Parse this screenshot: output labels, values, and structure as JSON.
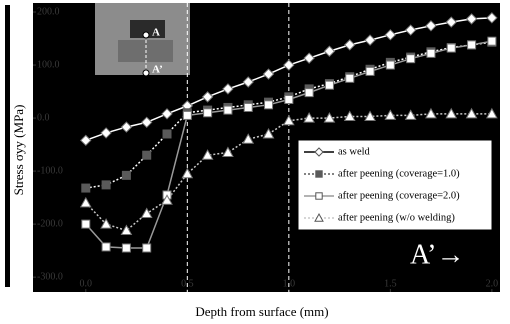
{
  "chart_data": {
    "type": "line",
    "y_label": "Stress σyy (MPa)",
    "x_label": "Depth from surface (mm)",
    "annotations": [
      "A’→",
      "A",
      "A’"
    ],
    "x": [
      0.0,
      0.1,
      0.2,
      0.3,
      0.4,
      0.5,
      0.6,
      0.7,
      0.8,
      0.9,
      1.0,
      1.1,
      1.2,
      1.3,
      1.4,
      1.5,
      1.6,
      1.7,
      1.8,
      1.9,
      2.0
    ],
    "series": [
      {
        "name": "as weld",
        "color": "#ffffff",
        "marker": "diamond",
        "filled": false,
        "dash": "solid",
        "values": [
          -42,
          -28,
          -17,
          -8,
          8,
          23,
          40,
          55,
          68,
          83,
          100,
          113,
          126,
          138,
          147,
          157,
          166,
          174,
          181,
          187,
          189
        ]
      },
      {
        "name": "after peening (coverage=1.0)",
        "color": "#5a5a5a",
        "marker": "square",
        "filled": true,
        "dash": "dotted",
        "values": [
          -132,
          -126,
          -108,
          -70,
          -30,
          10,
          15,
          20,
          25,
          30,
          40,
          55,
          65,
          78,
          92,
          105,
          115,
          125,
          133,
          138,
          143
        ]
      },
      {
        "name": "after peening (coverage=2.0)",
        "color": "#9a9a9a",
        "marker": "square",
        "filled": false,
        "dash": "solid",
        "values": [
          -200,
          -243,
          -245,
          -245,
          -145,
          5,
          10,
          15,
          20,
          25,
          35,
          48,
          62,
          75,
          88,
          100,
          112,
          122,
          132,
          138,
          145
        ]
      },
      {
        "name": "after peening (w/o welding)",
        "color": "#c8c8c8",
        "marker": "triangle",
        "filled": false,
        "dash": "dotted",
        "values": [
          -160,
          -200,
          -212,
          -180,
          -155,
          -105,
          -70,
          -65,
          -40,
          -30,
          -5,
          0,
          0,
          3,
          3,
          5,
          5,
          8,
          8,
          8,
          8
        ]
      }
    ],
    "xlim": [
      -0.26,
      2.04
    ],
    "ylim": [
      -328,
      217
    ],
    "xticks": [
      {
        "value": 0,
        "label": "0.0"
      },
      0.5,
      {
        "value": 1,
        "label": "1.0"
      },
      1.5,
      {
        "value": 2,
        "label": "2.0"
      }
    ],
    "yticks": [
      {
        "value": -300,
        "label": "-300.0"
      },
      {
        "value": -200,
        "label": "-200.0"
      },
      {
        "value": -100,
        "label": "-100.0"
      },
      {
        "value": 0,
        "label": "0.0"
      },
      {
        "value": 100,
        "label": "100.0"
      },
      {
        "value": 200,
        "label": "200.0"
      }
    ],
    "vlines": [
      0.5,
      1.0
    ],
    "legend": "lower-right",
    "grid": false
  }
}
